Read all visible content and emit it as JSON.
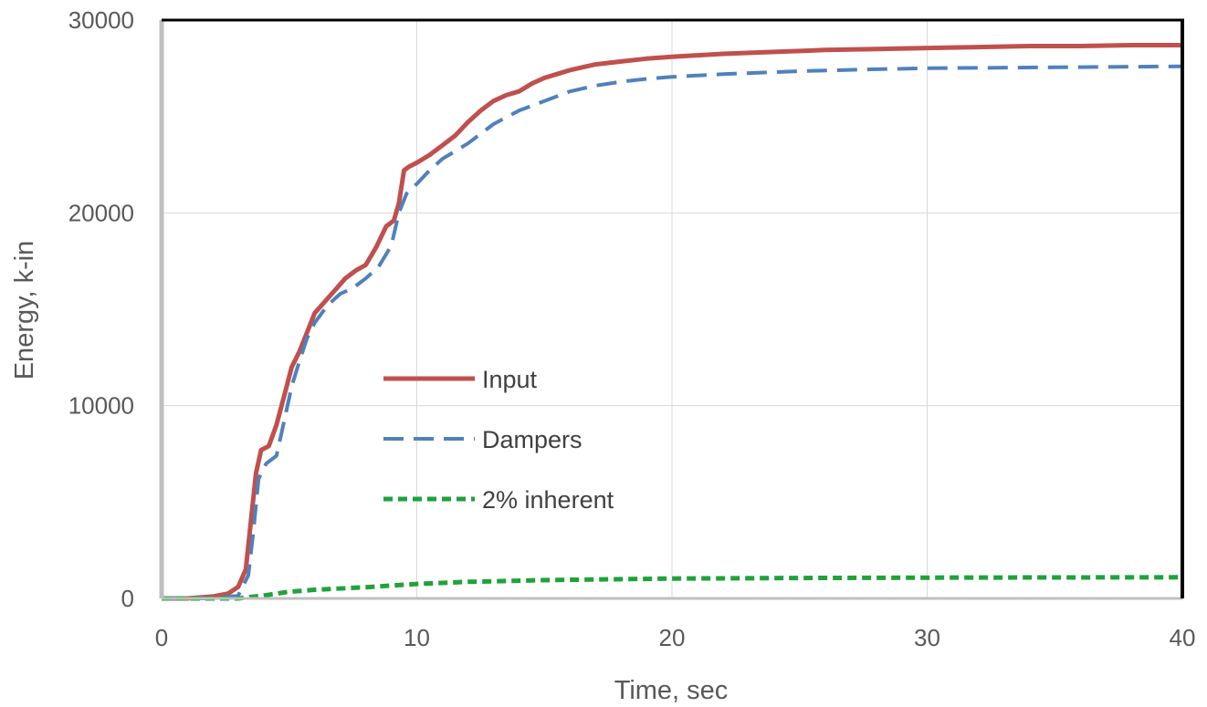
{
  "colors": {
    "input": "#C0504D",
    "dampers": "#4F81BD",
    "inherent": "#1FA23A",
    "left_axis": "#bfbfbf",
    "frame": "#000000",
    "grid": "#d9d9d9"
  },
  "chart_data": {
    "type": "line",
    "xlabel": "Time, sec",
    "ylabel": "Energy, k-in",
    "xlim": [
      0,
      40
    ],
    "ylim": [
      0,
      30000
    ],
    "x_ticks": [
      0,
      10,
      20,
      30,
      40
    ],
    "y_ticks": [
      0,
      10000,
      20000,
      30000
    ],
    "x_tick_labels": [
      "0",
      "10",
      "20",
      "30",
      "40"
    ],
    "y_tick_labels": [
      "0",
      "10000",
      "20000",
      "30000"
    ],
    "grid": true,
    "legend_position": "center",
    "series": [
      {
        "name": "Input",
        "style": "solid",
        "x": [
          0,
          1,
          2,
          2.6,
          3.0,
          3.3,
          3.5,
          3.7,
          3.9,
          4.2,
          4.5,
          4.8,
          5.1,
          5.4,
          5.7,
          6.0,
          6.4,
          6.8,
          7.2,
          7.6,
          8.0,
          8.4,
          8.8,
          9.1,
          9.3,
          9.5,
          9.7,
          10.0,
          10.5,
          11.0,
          11.5,
          12.0,
          12.5,
          13.0,
          13.5,
          14.0,
          14.5,
          15.0,
          15.5,
          16.0,
          17.0,
          18.0,
          19.0,
          20.0,
          22.0,
          24.0,
          26.0,
          28.0,
          30.0,
          32.0,
          34.0,
          36.0,
          38.0,
          40.0
        ],
        "y": [
          0,
          0,
          100,
          250,
          600,
          1500,
          4000,
          6500,
          7700,
          7900,
          9000,
          10500,
          12000,
          12800,
          13800,
          14800,
          15400,
          16000,
          16600,
          17000,
          17300,
          18200,
          19300,
          19600,
          20500,
          22200,
          22400,
          22600,
          23000,
          23500,
          24000,
          24700,
          25300,
          25800,
          26100,
          26300,
          26700,
          27000,
          27200,
          27400,
          27700,
          27850,
          28000,
          28100,
          28250,
          28350,
          28450,
          28500,
          28550,
          28600,
          28650,
          28650,
          28700,
          28700
        ]
      },
      {
        "name": "Dampers",
        "style": "dashed",
        "x": [
          0,
          2,
          3.0,
          3.4,
          3.6,
          3.8,
          4.1,
          4.5,
          4.8,
          5.1,
          5.4,
          5.7,
          6.0,
          6.5,
          7.0,
          7.5,
          8.0,
          8.5,
          9.0,
          9.3,
          9.6,
          10.0,
          10.5,
          11.0,
          12.0,
          13.0,
          14.0,
          15.0,
          16.0,
          17.0,
          18.0,
          19.0,
          20.0,
          22.0,
          25.0,
          28.0,
          30.0,
          35.0,
          40.0
        ],
        "y": [
          0,
          0,
          150,
          1200,
          3500,
          6200,
          7000,
          7400,
          9200,
          11000,
          12300,
          13500,
          14300,
          15200,
          15800,
          16100,
          16600,
          17200,
          18300,
          20000,
          21000,
          21500,
          22200,
          22800,
          23600,
          24600,
          25300,
          25800,
          26300,
          26600,
          26800,
          26950,
          27050,
          27200,
          27350,
          27450,
          27500,
          27550,
          27600
        ]
      },
      {
        "name": "2% inherent",
        "style": "dotted",
        "x": [
          0,
          3,
          4,
          5,
          6,
          8,
          10,
          12,
          15,
          20,
          25,
          30,
          35,
          40
        ],
        "y": [
          0,
          0,
          150,
          350,
          450,
          580,
          750,
          860,
          950,
          1030,
          1060,
          1080,
          1090,
          1100
        ]
      }
    ]
  }
}
